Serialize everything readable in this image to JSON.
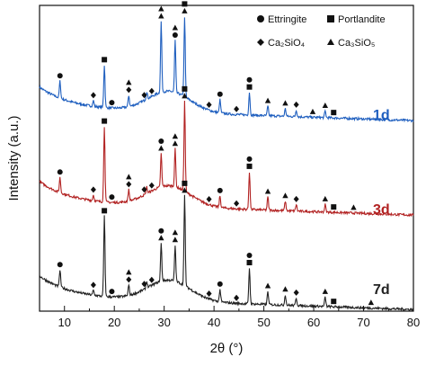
{
  "chart_data": {
    "type": "line",
    "title": "",
    "xlabel": "2θ (°)",
    "ylabel": "Intensity (a.u.)",
    "xlim": [
      5,
      80
    ],
    "xticks": [
      "10",
      "20",
      "30",
      "40",
      "50",
      "60",
      "70",
      "80"
    ],
    "yticks_shown": false,
    "grid": false,
    "legend_position": "top-right",
    "legend": [
      {
        "marker": "circle",
        "label": "Ettringite"
      },
      {
        "marker": "square",
        "label": "Portlandite"
      },
      {
        "marker": "diamond",
        "label": "Ca₂SiO₄"
      },
      {
        "marker": "triangle",
        "label": "Ca₃SiO₅"
      }
    ],
    "series": [
      {
        "name": "1d",
        "color": "#1f5fbf",
        "baseline_offset": 2.0,
        "peaks": [
          [
            9.1,
            0.18
          ],
          [
            15.8,
            0.06
          ],
          [
            18.0,
            0.45
          ],
          [
            22.9,
            0.12
          ],
          [
            26.5,
            0.08
          ],
          [
            29.4,
            0.75
          ],
          [
            32.2,
            0.55
          ],
          [
            34.1,
            0.85
          ],
          [
            41.2,
            0.14
          ],
          [
            47.1,
            0.24
          ],
          [
            50.8,
            0.1
          ],
          [
            54.3,
            0.08
          ],
          [
            56.5,
            0.07
          ],
          [
            62.3,
            0.07
          ]
        ]
      },
      {
        "name": "3d",
        "color": "#b22222",
        "baseline_offset": 1.0,
        "peaks": [
          [
            9.1,
            0.16
          ],
          [
            15.8,
            0.06
          ],
          [
            18.0,
            0.8
          ],
          [
            22.9,
            0.12
          ],
          [
            26.5,
            0.07
          ],
          [
            29.4,
            0.35
          ],
          [
            32.2,
            0.4
          ],
          [
            34.1,
            0.95
          ],
          [
            41.2,
            0.12
          ],
          [
            47.1,
            0.4
          ],
          [
            50.8,
            0.14
          ],
          [
            54.3,
            0.1
          ],
          [
            56.5,
            0.07
          ],
          [
            62.3,
            0.08
          ]
        ]
      },
      {
        "name": "7d",
        "color": "#222222",
        "baseline_offset": 0.0,
        "peaks": [
          [
            9.1,
            0.18
          ],
          [
            15.8,
            0.05
          ],
          [
            18.0,
            0.85
          ],
          [
            22.9,
            0.11
          ],
          [
            26.5,
            0.07
          ],
          [
            29.4,
            0.4
          ],
          [
            32.2,
            0.38
          ],
          [
            34.1,
            0.95
          ],
          [
            41.2,
            0.13
          ],
          [
            47.1,
            0.38
          ],
          [
            50.8,
            0.14
          ],
          [
            54.3,
            0.11
          ],
          [
            56.5,
            0.08
          ],
          [
            62.3,
            0.1
          ]
        ]
      }
    ],
    "phase_markers": [
      {
        "series": "1d",
        "marks": [
          [
            9.1,
            "circle"
          ],
          [
            15.8,
            "diamond"
          ],
          [
            18.0,
            "square"
          ],
          [
            19.5,
            "circle"
          ],
          [
            22.9,
            "diamond"
          ],
          [
            22.9,
            "triangle"
          ],
          [
            26.0,
            "diamond"
          ],
          [
            27.5,
            "diamond"
          ],
          [
            29.4,
            "triangle"
          ],
          [
            29.4,
            "triangle"
          ],
          [
            32.2,
            "circle"
          ],
          [
            32.2,
            "triangle"
          ],
          [
            34.1,
            "triangle"
          ],
          [
            34.1,
            "square"
          ],
          [
            39.0,
            "diamond"
          ],
          [
            41.2,
            "circle"
          ],
          [
            44.5,
            "diamond"
          ],
          [
            47.1,
            "square"
          ],
          [
            47.1,
            "circle"
          ],
          [
            50.8,
            "triangle"
          ],
          [
            54.3,
            "triangle"
          ],
          [
            56.5,
            "diamond"
          ],
          [
            59.8,
            "triangle"
          ],
          [
            62.3,
            "triangle"
          ],
          [
            64.0,
            "square"
          ]
        ]
      },
      {
        "series": "3d",
        "marks": [
          [
            9.1,
            "circle"
          ],
          [
            15.8,
            "diamond"
          ],
          [
            18.0,
            "square"
          ],
          [
            19.5,
            "circle"
          ],
          [
            22.9,
            "diamond"
          ],
          [
            22.9,
            "triangle"
          ],
          [
            26.0,
            "diamond"
          ],
          [
            27.5,
            "diamond"
          ],
          [
            29.4,
            "triangle"
          ],
          [
            29.4,
            "circle"
          ],
          [
            32.2,
            "triangle"
          ],
          [
            32.2,
            "triangle"
          ],
          [
            34.1,
            "triangle"
          ],
          [
            34.1,
            "square"
          ],
          [
            39.0,
            "diamond"
          ],
          [
            41.2,
            "circle"
          ],
          [
            44.5,
            "diamond"
          ],
          [
            47.1,
            "square"
          ],
          [
            47.1,
            "circle"
          ],
          [
            50.8,
            "triangle"
          ],
          [
            54.3,
            "triangle"
          ],
          [
            56.5,
            "diamond"
          ],
          [
            62.3,
            "triangle"
          ],
          [
            64.0,
            "square"
          ],
          [
            68.0,
            "triangle"
          ]
        ]
      },
      {
        "series": "7d",
        "marks": [
          [
            9.1,
            "circle"
          ],
          [
            15.8,
            "diamond"
          ],
          [
            18.0,
            "square"
          ],
          [
            19.5,
            "circle"
          ],
          [
            22.9,
            "diamond"
          ],
          [
            22.9,
            "triangle"
          ],
          [
            26.0,
            "diamond"
          ],
          [
            27.5,
            "diamond"
          ],
          [
            29.4,
            "triangle"
          ],
          [
            29.4,
            "circle"
          ],
          [
            32.2,
            "triangle"
          ],
          [
            32.2,
            "triangle"
          ],
          [
            34.1,
            "triangle"
          ],
          [
            34.1,
            "square"
          ],
          [
            39.0,
            "diamond"
          ],
          [
            41.2,
            "circle"
          ],
          [
            44.5,
            "diamond"
          ],
          [
            47.1,
            "square"
          ],
          [
            47.1,
            "circle"
          ],
          [
            50.8,
            "triangle"
          ],
          [
            54.3,
            "triangle"
          ],
          [
            56.5,
            "diamond"
          ],
          [
            62.3,
            "triangle"
          ],
          [
            64.0,
            "square"
          ],
          [
            71.5,
            "triangle"
          ]
        ]
      }
    ]
  }
}
